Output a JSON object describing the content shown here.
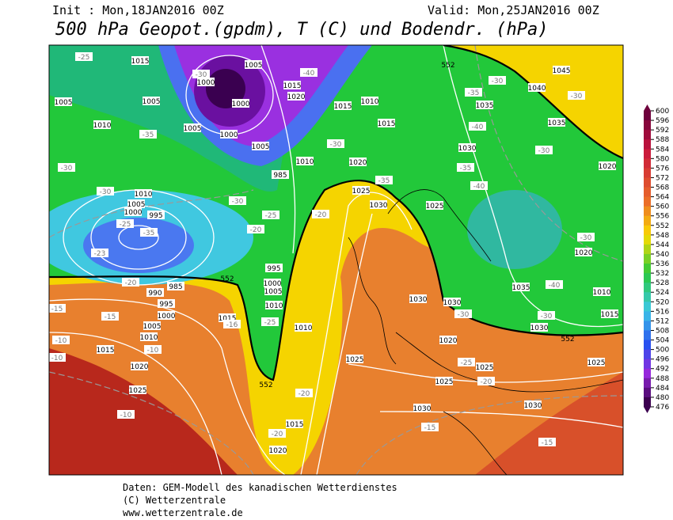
{
  "header": {
    "init": "Init : Mon,18JAN2016 00Z",
    "valid": "Valid: Mon,25JAN2016 00Z",
    "title": "500 hPa Geopot.(gpdm), T (C) und Bodendr. (hPa)"
  },
  "colorbar": {
    "ticks": [
      600,
      596,
      592,
      588,
      584,
      580,
      576,
      572,
      568,
      564,
      560,
      556,
      552,
      548,
      544,
      540,
      536,
      532,
      528,
      524,
      520,
      516,
      512,
      508,
      504,
      500,
      496,
      492,
      488,
      484,
      480,
      476
    ]
  },
  "map": {
    "isobar_labels": [
      1015,
      1005,
      1000,
      1005,
      1000,
      1010,
      1005,
      1000,
      1005,
      1010,
      985,
      1010,
      1005,
      1000,
      995,
      1015,
      1020,
      1015,
      1010,
      1015,
      1020,
      1025,
      1030,
      1025,
      1035,
      1030,
      1040,
      1045,
      1035,
      1020,
      1020,
      1035,
      1010,
      1015,
      1030,
      1030,
      1030,
      1020,
      1025,
      1025,
      1030,
      1030,
      1025,
      1025,
      1010,
      1000,
      1005,
      1010,
      995,
      1015,
      985,
      990,
      995,
      1000,
      1005,
      1010,
      1015,
      1020,
      1025,
      1015,
      1020,
      1005
    ],
    "temperature_labels": [
      -25,
      -30,
      -35,
      -30,
      -30,
      -25,
      -23,
      -20,
      -15,
      -15,
      -10,
      -10,
      -10,
      -10,
      -40,
      -30,
      -35,
      -25,
      -20,
      -20,
      -25,
      -16,
      -20,
      -20,
      -30,
      -30,
      -35,
      -40,
      -35,
      -40,
      -30,
      -30,
      -40,
      -30,
      -30,
      -25,
      -20,
      -15,
      -15,
      -30,
      -35
    ],
    "height_labels": [
      552,
      552,
      552,
      552
    ]
  },
  "footer": {
    "source": "Daten: GEM-Modell des kanadischen Wetterdienstes",
    "copyright": "(C) Wetterzentrale",
    "url": "www.wetterzentrale.de"
  }
}
